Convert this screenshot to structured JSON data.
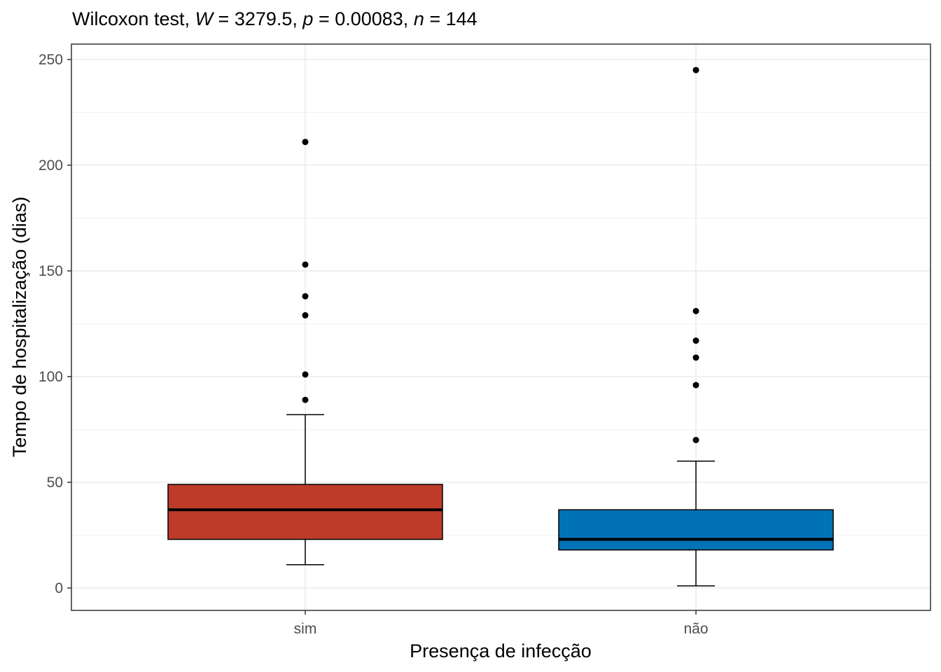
{
  "chart_data": {
    "type": "boxplot",
    "title_parts": [
      "Wilcoxon test, ",
      "W",
      " = 3279.5, ",
      "p",
      " = 0.00083, ",
      "n",
      " = 144"
    ],
    "xlabel": "Presença de infecção",
    "ylabel": "Tempo de hospitalização (dias)",
    "ylim": [
      -10,
      257
    ],
    "yticks": [
      0,
      50,
      100,
      150,
      200,
      250
    ],
    "yminor": [
      25,
      75,
      125,
      175,
      225
    ],
    "grid": true,
    "categories": [
      "sim",
      "não"
    ],
    "boxes": [
      {
        "name": "sim",
        "color": "#BC3C29",
        "whisker_low": 11,
        "q1": 23,
        "median": 37,
        "q3": 49,
        "whisker_high": 82,
        "outliers": [
          89,
          101,
          129,
          138,
          153,
          211
        ]
      },
      {
        "name": "não",
        "color": "#0072B5",
        "whisker_low": 1,
        "q1": 18,
        "median": 23,
        "q3": 37,
        "whisker_high": 60,
        "outliers": [
          70,
          96,
          109,
          117,
          131,
          245
        ]
      }
    ]
  }
}
